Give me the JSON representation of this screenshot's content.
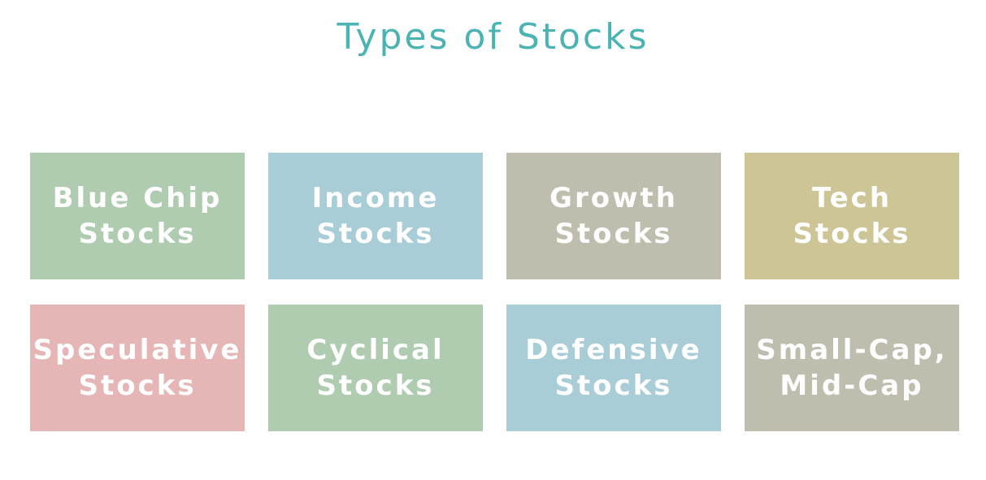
{
  "title": "Types of Stocks",
  "boxes": [
    {
      "label": "Blue Chip\nStocks",
      "color": "#afcbb0"
    },
    {
      "label": "Income\nStocks",
      "color": "#a9cdd6"
    },
    {
      "label": "Growth\nStocks",
      "color": "#bfbdad"
    },
    {
      "label": "Tech Stocks",
      "color": "#cdc596"
    },
    {
      "label": "Speculative\nStocks",
      "color": "#e6b6b6"
    },
    {
      "label": "Cyclical\nStocks",
      "color": "#afcbb0"
    },
    {
      "label": "Defensive\nStocks",
      "color": "#a9cdd6"
    },
    {
      "label": "Small-Cap,\nMid-Cap",
      "color": "#bfbdad"
    }
  ]
}
